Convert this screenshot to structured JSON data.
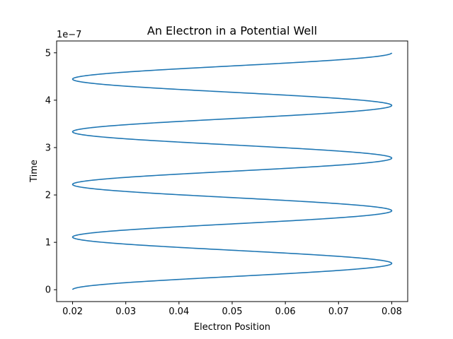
{
  "chart_data": {
    "type": "line",
    "title": "An Electron in a Potential Well",
    "xlabel": "Electron Position",
    "ylabel": "Time",
    "y_offset_label": "1e−7",
    "xlim": [
      0.017,
      0.083
    ],
    "ylim": [
      -0.25,
      5.25
    ],
    "y_scale": 1e-07,
    "x_ticks": [
      0.02,
      0.03,
      0.04,
      0.05,
      0.06,
      0.07,
      0.08
    ],
    "x_tick_labels": [
      "0.02",
      "0.03",
      "0.04",
      "0.05",
      "0.06",
      "0.07",
      "0.08"
    ],
    "y_ticks": [
      0,
      1,
      2,
      3,
      4,
      5
    ],
    "y_tick_labels": [
      "0",
      "1",
      "2",
      "3",
      "4",
      "5"
    ],
    "grid": false,
    "series": [
      {
        "color": "#1f77b4",
        "x_min": 0.02,
        "x_max": 0.08,
        "t_start": 0,
        "t_end": 5.0,
        "turning_points_max_x": [
          0.556,
          1.667,
          2.778,
          3.889
        ],
        "turning_points_min_x": [
          0.0,
          1.111,
          2.222,
          3.333,
          4.444
        ],
        "half_period": 0.5556
      }
    ]
  }
}
